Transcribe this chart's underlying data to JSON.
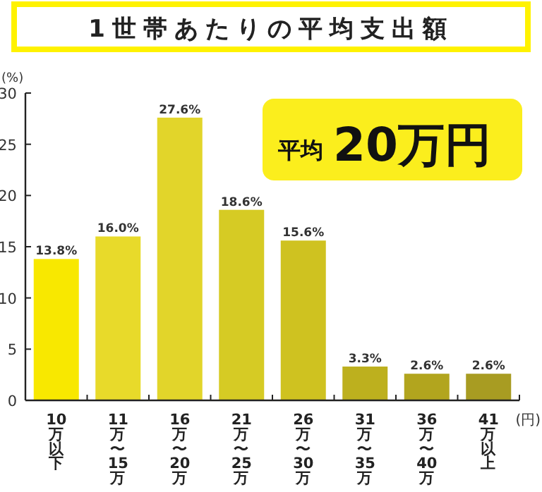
{
  "chart_data": {
    "type": "bar",
    "title": "1世帯あたりの平均支出額",
    "ylabel": "(%)",
    "xlabel": "(円)",
    "categories": [
      "10万以下",
      "11万〜15万",
      "16万〜20万",
      "21万〜25万",
      "26万〜30万",
      "31万〜35万",
      "36万〜40万",
      "41万以上"
    ],
    "values": [
      13.8,
      16.0,
      27.6,
      18.6,
      15.6,
      3.3,
      2.6,
      2.6
    ],
    "value_labels": [
      "13.8%",
      "16.0%",
      "27.6%",
      "18.6%",
      "15.6%",
      "3.3%",
      "2.6%",
      "2.6%"
    ],
    "colors": [
      "#f8e800",
      "#e8da2a",
      "#e2d52a",
      "#d6cb24",
      "#cfc220",
      "#bdb01e",
      "#b2a51e",
      "#a89c22"
    ],
    "ylim": [
      0,
      30
    ],
    "yticks": [
      0,
      5,
      10,
      15,
      20,
      25,
      30
    ],
    "annotations": [
      "平均",
      "20万円"
    ]
  }
}
